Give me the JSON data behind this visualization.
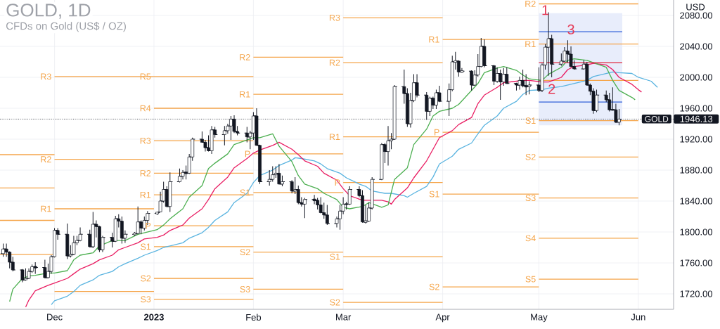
{
  "chart_data": {
    "type": "candlestick",
    "title": "GOLD, 1D",
    "subtitle": "CFDs on Gold (US$ / OZ)",
    "ylabel": "USD",
    "color": "#131722",
    "x": [
      "2022-11-15",
      "2022-11-16",
      "2022-11-17",
      "2022-11-18",
      "2022-11-21",
      "2022-11-22",
      "2022-11-23",
      "2022-11-24",
      "2022-11-25",
      "2022-11-28",
      "2022-11-29",
      "2022-11-30",
      "2022-12-01",
      "2022-12-02",
      "2022-12-05",
      "2022-12-06",
      "2022-12-07",
      "2022-12-08",
      "2022-12-09",
      "2022-12-12",
      "2022-12-13",
      "2022-12-14",
      "2022-12-15",
      "2022-12-16",
      "2022-12-19",
      "2022-12-20",
      "2022-12-21",
      "2022-12-22",
      "2022-12-23",
      "2022-12-26",
      "2022-12-27",
      "2022-12-28",
      "2022-12-29",
      "2022-12-30",
      "2023-01-02",
      "2023-01-03",
      "2023-01-04",
      "2023-01-05",
      "2023-01-06",
      "2023-01-09",
      "2023-01-10",
      "2023-01-11",
      "2023-01-12",
      "2023-01-13",
      "2023-01-16",
      "2023-01-17",
      "2023-01-18",
      "2023-01-19",
      "2023-01-20",
      "2023-01-23",
      "2023-01-24",
      "2023-01-25",
      "2023-01-26",
      "2023-01-27",
      "2023-01-30",
      "2023-01-31",
      "2023-02-01",
      "2023-02-02",
      "2023-02-03",
      "2023-02-06",
      "2023-02-07",
      "2023-02-08",
      "2023-02-09",
      "2023-02-10",
      "2023-02-13",
      "2023-02-14",
      "2023-02-15",
      "2023-02-16",
      "2023-02-17",
      "2023-02-20",
      "2023-02-21",
      "2023-02-22",
      "2023-02-23",
      "2023-02-24",
      "2023-02-27",
      "2023-02-28",
      "2023-03-01",
      "2023-03-02",
      "2023-03-03",
      "2023-03-06",
      "2023-03-07",
      "2023-03-08",
      "2023-03-09",
      "2023-03-10",
      "2023-03-13",
      "2023-03-14",
      "2023-03-15",
      "2023-03-16",
      "2023-03-17",
      "2023-03-20",
      "2023-03-21",
      "2023-03-22",
      "2023-03-23",
      "2023-03-24",
      "2023-03-27",
      "2023-03-28",
      "2023-03-29",
      "2023-03-30",
      "2023-03-31",
      "2023-04-03",
      "2023-04-04",
      "2023-04-05",
      "2023-04-06",
      "2023-04-07",
      "2023-04-10",
      "2023-04-11",
      "2023-04-12",
      "2023-04-13",
      "2023-04-14",
      "2023-04-17",
      "2023-04-18",
      "2023-04-19",
      "2023-04-20",
      "2023-04-21",
      "2023-04-24",
      "2023-04-25",
      "2023-04-26",
      "2023-04-27",
      "2023-04-28",
      "2023-05-01",
      "2023-05-02",
      "2023-05-03",
      "2023-05-04",
      "2023-05-05",
      "2023-05-08",
      "2023-05-09",
      "2023-05-10",
      "2023-05-11",
      "2023-05-12",
      "2023-05-15",
      "2023-05-16",
      "2023-05-17",
      "2023-05-18",
      "2023-05-19",
      "2023-05-22",
      "2023-05-23",
      "2023-05-24",
      "2023-05-25",
      "2023-05-26"
    ],
    "ohlc": [
      [
        1772,
        1785,
        1768,
        1778
      ],
      [
        1778,
        1785,
        1768,
        1774
      ],
      [
        1774,
        1775,
        1753,
        1761
      ],
      [
        1761,
        1768,
        1749,
        1751
      ],
      [
        1751,
        1752,
        1735,
        1738
      ],
      [
        1738,
        1753,
        1737,
        1740
      ],
      [
        1740,
        1753,
        1739,
        1749
      ],
      [
        1749,
        1758,
        1747,
        1755
      ],
      [
        1755,
        1761,
        1746,
        1754
      ],
      [
        1754,
        1764,
        1740,
        1741
      ],
      [
        1741,
        1759,
        1740,
        1749
      ],
      [
        1749,
        1770,
        1746,
        1768
      ],
      [
        1768,
        1805,
        1767,
        1802
      ],
      [
        1802,
        1805,
        1790,
        1797
      ],
      [
        1797,
        1811,
        1765,
        1769
      ],
      [
        1769,
        1783,
        1767,
        1771
      ],
      [
        1771,
        1795,
        1770,
        1786
      ],
      [
        1786,
        1795,
        1783,
        1789
      ],
      [
        1789,
        1806,
        1788,
        1797
      ],
      [
        1797,
        1803,
        1780,
        1781
      ],
      [
        1781,
        1826,
        1779,
        1810
      ],
      [
        1810,
        1815,
        1793,
        1807
      ],
      [
        1807,
        1808,
        1774,
        1777
      ],
      [
        1777,
        1795,
        1774,
        1793
      ],
      [
        1793,
        1799,
        1780,
        1788
      ],
      [
        1788,
        1821,
        1787,
        1817
      ],
      [
        1817,
        1823,
        1806,
        1814
      ],
      [
        1814,
        1820,
        1785,
        1792
      ],
      [
        1792,
        1802,
        1786,
        1797
      ],
      [
        1797,
        1800,
        1795,
        1798
      ],
      [
        1798,
        1833,
        1797,
        1813
      ],
      [
        1813,
        1815,
        1797,
        1805
      ],
      [
        1805,
        1820,
        1802,
        1815
      ],
      [
        1815,
        1827,
        1809,
        1824
      ],
      [
        1824,
        1826,
        1822,
        1825
      ],
      [
        1826,
        1852,
        1826,
        1840
      ],
      [
        1840,
        1865,
        1838,
        1855
      ],
      [
        1855,
        1859,
        1832,
        1833
      ],
      [
        1833,
        1877,
        1826,
        1865
      ],
      [
        1865,
        1882,
        1864,
        1872
      ],
      [
        1872,
        1880,
        1868,
        1877
      ],
      [
        1877,
        1886,
        1868,
        1876
      ],
      [
        1876,
        1901,
        1875,
        1897
      ],
      [
        1897,
        1922,
        1892,
        1920
      ],
      [
        1920,
        1930,
        1916,
        1916
      ],
      [
        1916,
        1919,
        1904,
        1909
      ],
      [
        1909,
        1925,
        1904,
        1905
      ],
      [
        1905,
        1937,
        1901,
        1932
      ],
      [
        1932,
        1936,
        1922,
        1926
      ],
      [
        1926,
        1937,
        1912,
        1931
      ],
      [
        1931,
        1940,
        1927,
        1937
      ],
      [
        1937,
        1950,
        1919,
        1946
      ],
      [
        1946,
        1951,
        1928,
        1930
      ],
      [
        1930,
        1937,
        1925,
        1928
      ],
      [
        1928,
        1936,
        1916,
        1923
      ],
      [
        1923,
        1931,
        1907,
        1928
      ],
      [
        1928,
        1955,
        1919,
        1950
      ],
      [
        1950,
        1960,
        1912,
        1912
      ],
      [
        1912,
        1913,
        1862,
        1865
      ],
      [
        1865,
        1880,
        1860,
        1868
      ],
      [
        1868,
        1885,
        1865,
        1874
      ],
      [
        1874,
        1885,
        1870,
        1876
      ],
      [
        1876,
        1888,
        1862,
        1862
      ],
      [
        1862,
        1873,
        1859,
        1865
      ],
      [
        1865,
        1867,
        1850,
        1853
      ],
      [
        1853,
        1871,
        1849,
        1855
      ],
      [
        1855,
        1860,
        1836,
        1838
      ],
      [
        1838,
        1845,
        1833,
        1836
      ],
      [
        1836,
        1844,
        1818,
        1842
      ],
      [
        1842,
        1848,
        1836,
        1841
      ],
      [
        1841,
        1844,
        1829,
        1835
      ],
      [
        1835,
        1845,
        1824,
        1825
      ],
      [
        1825,
        1838,
        1817,
        1822
      ],
      [
        1822,
        1835,
        1809,
        1811
      ],
      [
        1811,
        1820,
        1806,
        1817
      ],
      [
        1817,
        1835,
        1803,
        1827
      ],
      [
        1827,
        1845,
        1823,
        1836
      ],
      [
        1836,
        1839,
        1829,
        1836
      ],
      [
        1836,
        1859,
        1835,
        1855
      ],
      [
        1855,
        1859,
        1845,
        1847
      ],
      [
        1847,
        1854,
        1812,
        1813
      ],
      [
        1813,
        1835,
        1811,
        1814
      ],
      [
        1814,
        1838,
        1813,
        1831
      ],
      [
        1831,
        1871,
        1829,
        1868
      ],
      [
        1868,
        1915,
        1867,
        1913
      ],
      [
        1913,
        1915,
        1889,
        1904
      ],
      [
        1904,
        1937,
        1886,
        1918
      ],
      [
        1918,
        1928,
        1907,
        1920
      ],
      [
        1920,
        1990,
        1919,
        1988
      ],
      [
        1988,
        2010,
        1966,
        1979
      ],
      [
        1979,
        1986,
        1936,
        1940
      ],
      [
        1940,
        1980,
        1935,
        1970
      ],
      [
        1970,
        2004,
        1968,
        1993
      ],
      [
        1993,
        2004,
        1974,
        1977
      ],
      [
        1977,
        1981,
        1945,
        1956
      ],
      [
        1956,
        1975,
        1950,
        1973
      ],
      [
        1973,
        1975,
        1959,
        1964
      ],
      [
        1964,
        1984,
        1959,
        1980
      ],
      [
        1980,
        1989,
        1968,
        1969
      ],
      [
        1969,
        1992,
        1950,
        1984
      ],
      [
        1984,
        2028,
        1982,
        2020
      ],
      [
        2020,
        2033,
        2010,
        2021
      ],
      [
        2021,
        2022,
        2001,
        2007
      ],
      [
        2007,
        2012,
        2006,
        2008
      ],
      [
        2008,
        2009,
        1983,
        1990
      ],
      [
        1990,
        2009,
        1989,
        2003
      ],
      [
        2003,
        2030,
        2001,
        2014
      ],
      [
        2014,
        2051,
        2013,
        2040
      ],
      [
        2040,
        2049,
        2013,
        2015
      ],
      [
        2015,
        2016,
        1990,
        1995
      ],
      [
        1995,
        2013,
        1993,
        2005
      ],
      [
        2005,
        2010,
        1971,
        1994
      ],
      [
        1994,
        2012,
        1989,
        2004
      ],
      [
        2004,
        2013,
        1992,
        1992
      ],
      [
        1992,
        1993,
        1983,
        1990
      ],
      [
        1990,
        2001,
        1984,
        1996
      ],
      [
        1996,
        2010,
        1987,
        1989
      ],
      [
        1989,
        2004,
        1977,
        1988
      ],
      [
        1988,
        1995,
        1978,
        1990
      ],
      [
        1990,
        2013,
        1981,
        1983
      ],
      [
        1983,
        2018,
        1981,
        2016
      ],
      [
        2016,
        2043,
        2010,
        2039
      ],
      [
        2039,
        2084,
        2002,
        2050
      ],
      [
        2050,
        2055,
        2000,
        2017
      ],
      [
        2017,
        2031,
        2015,
        2021
      ],
      [
        2021,
        2039,
        2020,
        2034
      ],
      [
        2034,
        2048,
        2019,
        2030
      ],
      [
        2030,
        2040,
        2013,
        2014
      ],
      [
        2014,
        2022,
        2010,
        2011
      ],
      [
        2011,
        2022,
        2010,
        2017
      ],
      [
        2017,
        2020,
        1989,
        1990
      ],
      [
        1990,
        1992,
        1977,
        1982
      ],
      [
        1982,
        1986,
        1953,
        1957
      ],
      [
        1957,
        1984,
        1955,
        1977
      ],
      [
        1977,
        1983,
        1968,
        1971
      ],
      [
        1971,
        1980,
        1956,
        1958
      ],
      [
        1958,
        1987,
        1957,
        1958
      ],
      [
        1958,
        1966,
        1941,
        1942
      ],
      [
        1942,
        1959,
        1938,
        1946
      ]
    ],
    "xlim": [
      "2022-11-14",
      "2023-06-12"
    ],
    "xticks": [
      {
        "value": "2022-12-01",
        "label": "Dec"
      },
      {
        "value": "2023-01-01",
        "label": "2023"
      },
      {
        "value": "2023-02-01",
        "label": "Feb"
      },
      {
        "value": "2023-03-01",
        "label": "Mar"
      },
      {
        "value": "2023-04-01",
        "label": "Apr"
      },
      {
        "value": "2023-05-01",
        "label": "May"
      },
      {
        "value": "2023-06-01",
        "label": "Jun"
      }
    ],
    "ylim": [
      1700,
      2100
    ],
    "yticks": [
      {
        "value": 1720,
        "label": "1720.00"
      },
      {
        "value": 1760,
        "label": "1760.00"
      },
      {
        "value": 1800,
        "label": "1800.00"
      },
      {
        "value": 1840,
        "label": "1840.00"
      },
      {
        "value": 1880,
        "label": "1880.00"
      },
      {
        "value": 1920,
        "label": "1920.00"
      },
      {
        "value": 1960,
        "label": "1960.00"
      },
      {
        "value": 2000,
        "label": "2000.00"
      },
      {
        "value": 2040,
        "label": "2040.00"
      },
      {
        "value": 2080,
        "label": "2080.00"
      }
    ],
    "grid": true,
    "series": [
      {
        "type": "line",
        "color": "#f5a54a",
        "x": [
          "2022-11-14",
          "2022-12-01"
        ],
        "values": [
          1900,
          1900
        ]
      },
      {
        "type": "line",
        "color": "#f5a54a",
        "x": [
          "2022-11-14",
          "2022-12-01"
        ],
        "values": [
          1857,
          1857
        ]
      },
      {
        "type": "line",
        "color": "#f5a54a",
        "x": [
          "2022-11-14",
          "2022-12-01"
        ],
        "values": [
          1815,
          1815
        ]
      },
      {
        "type": "line",
        "color": "#f5a54a",
        "x": [
          "2022-11-14",
          "2022-12-01"
        ],
        "values": [
          1771,
          1771
        ]
      },
      {
        "type": "line",
        "name": "R3",
        "color": "#f5a54a",
        "x": [
          "2022-12-01",
          "2023-01-01"
        ],
        "values": [
          2001,
          2001
        ]
      },
      {
        "type": "line",
        "name": "R2",
        "color": "#f5a54a",
        "x": [
          "2022-12-01",
          "2023-01-01"
        ],
        "values": [
          1894,
          1894
        ]
      },
      {
        "type": "line",
        "name": "R1",
        "color": "#f5a54a",
        "x": [
          "2022-12-01",
          "2023-01-01"
        ],
        "values": [
          1830,
          1830
        ]
      },
      {
        "type": "line",
        "color": "#f5a54a",
        "x": [
          "2022-12-01",
          "2023-01-01"
        ],
        "values": [
          1723,
          1723
        ]
      },
      {
        "type": "line",
        "name": "R5",
        "color": "#f5a54a",
        "x": [
          "2023-01-01",
          "2023-02-01"
        ],
        "values": [
          2001,
          2001
        ]
      },
      {
        "type": "line",
        "name": "R4",
        "color": "#f5a54a",
        "x": [
          "2023-01-01",
          "2023-02-01"
        ],
        "values": [
          1960,
          1960
        ]
      },
      {
        "type": "line",
        "name": "R3",
        "color": "#f5a54a",
        "x": [
          "2023-01-01",
          "2023-02-01"
        ],
        "values": [
          1918,
          1918
        ]
      },
      {
        "type": "line",
        "name": "R2",
        "color": "#f5a54a",
        "x": [
          "2023-01-01",
          "2023-02-01"
        ],
        "values": [
          1876,
          1876
        ]
      },
      {
        "type": "line",
        "name": "R1",
        "color": "#f5a54a",
        "x": [
          "2023-01-01",
          "2023-02-01"
        ],
        "values": [
          1848,
          1848
        ]
      },
      {
        "type": "line",
        "name": "P",
        "color": "#f5a54a",
        "x": [
          "2023-01-01",
          "2023-02-01"
        ],
        "values": [
          1808,
          1808
        ]
      },
      {
        "type": "line",
        "name": "S1",
        "color": "#f5a54a",
        "x": [
          "2023-01-01",
          "2023-02-01"
        ],
        "values": [
          1781,
          1781
        ]
      },
      {
        "type": "line",
        "name": "S2",
        "color": "#f5a54a",
        "x": [
          "2023-01-01",
          "2023-02-01"
        ],
        "values": [
          1740,
          1740
        ]
      },
      {
        "type": "line",
        "name": "S3",
        "color": "#f5a54a",
        "x": [
          "2023-01-01",
          "2023-02-01"
        ],
        "values": [
          1713,
          1713
        ]
      },
      {
        "type": "line",
        "name": "R2",
        "color": "#f5a54a",
        "x": [
          "2023-02-01",
          "2023-03-01"
        ],
        "values": [
          2026,
          2026
        ]
      },
      {
        "type": "line",
        "name": "R1",
        "color": "#f5a54a",
        "x": [
          "2023-02-01",
          "2023-03-01"
        ],
        "values": [
          1978,
          1978
        ]
      },
      {
        "type": "line",
        "name": "P",
        "color": "#f5a54a",
        "x": [
          "2023-02-01",
          "2023-03-01"
        ],
        "values": [
          1901,
          1901
        ]
      },
      {
        "type": "line",
        "name": "S1",
        "color": "#f5a54a",
        "x": [
          "2023-02-01",
          "2023-03-01"
        ],
        "values": [
          1851,
          1851
        ]
      },
      {
        "type": "line",
        "name": "S2",
        "color": "#f5a54a",
        "x": [
          "2023-02-01",
          "2023-03-01"
        ],
        "values": [
          1774,
          1774
        ]
      },
      {
        "type": "line",
        "name": "S3",
        "color": "#f5a54a",
        "x": [
          "2023-02-01",
          "2023-03-01"
        ],
        "values": [
          1726,
          1726
        ]
      },
      {
        "type": "line",
        "name": "R3",
        "color": "#f5a54a",
        "x": [
          "2023-03-01",
          "2023-04-01"
        ],
        "values": [
          2077,
          2077
        ]
      },
      {
        "type": "line",
        "name": "R2",
        "color": "#f5a54a",
        "x": [
          "2023-03-01",
          "2023-04-01"
        ],
        "values": [
          2019,
          2019
        ]
      },
      {
        "type": "line",
        "name": "R1",
        "color": "#f5a54a",
        "x": [
          "2023-03-01",
          "2023-04-01"
        ],
        "values": [
          1923,
          1923
        ]
      },
      {
        "type": "line",
        "name": "P",
        "color": "#f5a54a",
        "x": [
          "2023-03-01",
          "2023-04-01"
        ],
        "values": [
          1864,
          1864
        ]
      },
      {
        "type": "line",
        "name": "S1",
        "color": "#f5a54a",
        "x": [
          "2023-03-01",
          "2023-04-01"
        ],
        "values": [
          1768,
          1768
        ]
      },
      {
        "type": "line",
        "name": "S2",
        "color": "#f5a54a",
        "x": [
          "2023-03-01",
          "2023-04-01"
        ],
        "values": [
          1709,
          1709
        ]
      },
      {
        "type": "line",
        "name": "R1",
        "color": "#f5a54a",
        "x": [
          "2023-04-01",
          "2023-05-01"
        ],
        "values": [
          2049,
          2049
        ]
      },
      {
        "type": "line",
        "name": "P",
        "color": "#f5a54a",
        "x": [
          "2023-04-01",
          "2023-05-01"
        ],
        "values": [
          1929,
          1929
        ]
      },
      {
        "type": "line",
        "name": "S1",
        "color": "#f5a54a",
        "x": [
          "2023-04-01",
          "2023-05-01"
        ],
        "values": [
          1849,
          1849
        ]
      },
      {
        "type": "line",
        "name": "S2",
        "color": "#f5a54a",
        "x": [
          "2023-04-01",
          "2023-05-01"
        ],
        "values": [
          1729,
          1729
        ]
      },
      {
        "type": "line",
        "name": "R2",
        "color": "#f5a54a",
        "x": [
          "2023-05-01",
          "2023-06-01"
        ],
        "values": [
          2095,
          2095
        ]
      },
      {
        "type": "line",
        "name": "R1",
        "color": "#f5a54a",
        "x": [
          "2023-05-01",
          "2023-06-01"
        ],
        "values": [
          2043,
          2043
        ]
      },
      {
        "type": "line",
        "color": "#f5a54a",
        "x": [
          "2023-05-01",
          "2023-06-01"
        ],
        "values": [
          1996,
          1996
        ]
      },
      {
        "type": "line",
        "name": "S1",
        "color": "#f5a54a",
        "x": [
          "2023-05-01",
          "2023-06-01"
        ],
        "values": [
          1944,
          1944
        ]
      },
      {
        "type": "line",
        "name": "S2",
        "color": "#f5a54a",
        "x": [
          "2023-05-01",
          "2023-06-01"
        ],
        "values": [
          1897,
          1897
        ]
      },
      {
        "type": "line",
        "name": "S3",
        "color": "#f5a54a",
        "x": [
          "2023-05-01",
          "2023-06-01"
        ],
        "values": [
          1844,
          1844
        ]
      },
      {
        "type": "line",
        "name": "S4",
        "color": "#f5a54a",
        "x": [
          "2023-05-01",
          "2023-06-01"
        ],
        "values": [
          1792,
          1792
        ]
      },
      {
        "type": "line",
        "name": "S5",
        "color": "#f5a54a",
        "x": [
          "2023-05-01",
          "2023-06-01"
        ],
        "values": [
          1739,
          1739
        ]
      },
      {
        "type": "line",
        "color": "#5ab4e0",
        "x": [
          "2022-11-30",
          "2022-12-01",
          "2022-12-05",
          "2022-12-07",
          "2022-12-09",
          "2022-12-13",
          "2022-12-15",
          "2022-12-19",
          "2022-12-21",
          "2022-12-23",
          "2022-12-27",
          "2022-12-29",
          "2023-01-02",
          "2023-01-04",
          "2023-01-06",
          "2023-01-10",
          "2023-01-12",
          "2023-01-16",
          "2023-01-18",
          "2023-01-20",
          "2023-01-24",
          "2023-01-26",
          "2023-01-30",
          "2023-02-01",
          "2023-02-03",
          "2023-02-07",
          "2023-02-09",
          "2023-02-13",
          "2023-02-14",
          "2023-02-16",
          "2023-02-20",
          "2023-02-22",
          "2023-02-24",
          "2023-02-28",
          "2023-03-02",
          "2023-03-06",
          "2023-03-08",
          "2023-03-10",
          "2023-03-14",
          "2023-03-16",
          "2023-03-20",
          "2023-03-21",
          "2023-03-23",
          "2023-03-27",
          "2023-03-29",
          "2023-03-31",
          "2023-04-04",
          "2023-04-06",
          "2023-04-10",
          "2023-04-12",
          "2023-04-14",
          "2023-04-18",
          "2023-04-20",
          "2023-04-24",
          "2023-04-26",
          "2023-04-28",
          "2023-05-02",
          "2023-05-04",
          "2023-05-08",
          "2023-05-10",
          "2023-05-12",
          "2023-05-16",
          "2023-05-18",
          "2023-05-22",
          "2023-05-24",
          "2023-05-26",
          "2023-05-30",
          "2023-06-01",
          "2023-06-05",
          "2023-06-07"
        ],
        "values": [
          1706,
          1711,
          1717,
          1723,
          1731,
          1738,
          1744,
          1749,
          1755,
          1759,
          1766,
          1770,
          1776,
          1780,
          1782,
          1786,
          1792,
          1799,
          1806,
          1815,
          1826,
          1838,
          1850,
          1864,
          1873,
          1880,
          1886,
          1893,
          1896,
          1895,
          1892,
          1888,
          1882,
          1876,
          1870,
          1862,
          1859,
          1853,
          1850,
          1850,
          1847,
          1845,
          1850,
          1859,
          1871,
          1888,
          1898,
          1907,
          1915,
          1927,
          1938,
          1950,
          1960,
          1969,
          1978,
          1983,
          1984,
          1986,
          1988,
          1990,
          1992,
          1996,
          2001,
          2005,
          2007,
          2006,
          2005,
          2000,
          1995,
          1987
        ]
      },
      {
        "type": "line",
        "color": "#e91e63",
        "x": [
          "2022-11-22",
          "2022-11-23",
          "2022-11-25",
          "2022-11-29",
          "2022-12-01",
          "2022-12-05",
          "2022-12-07",
          "2022-12-09",
          "2022-12-13",
          "2022-12-15",
          "2022-12-19",
          "2022-12-21",
          "2022-12-23",
          "2022-12-27",
          "2022-12-29",
          "2023-01-02",
          "2023-01-04",
          "2023-01-06",
          "2023-01-10",
          "2023-01-12",
          "2023-01-16",
          "2023-01-18",
          "2023-01-20",
          "2023-01-24",
          "2023-01-26",
          "2023-01-30",
          "2023-02-01",
          "2023-02-03",
          "2023-02-07",
          "2023-02-09",
          "2023-02-13",
          "2023-02-15",
          "2023-02-17",
          "2023-02-21",
          "2023-02-23",
          "2023-02-27",
          "2023-03-01",
          "2023-03-03",
          "2023-03-07",
          "2023-03-09",
          "2023-03-13",
          "2023-03-15",
          "2023-03-16",
          "2023-03-17",
          "2023-03-21",
          "2023-03-23",
          "2023-03-27",
          "2023-03-29",
          "2023-03-31",
          "2023-04-04",
          "2023-04-06",
          "2023-04-10",
          "2023-04-12",
          "2023-04-14",
          "2023-04-18",
          "2023-04-20",
          "2023-04-24",
          "2023-04-26",
          "2023-04-28",
          "2023-05-02",
          "2023-05-04",
          "2023-05-08",
          "2023-05-10",
          "2023-05-12",
          "2023-05-16",
          "2023-05-18",
          "2023-05-22",
          "2023-05-24",
          "2023-05-26",
          "2023-05-30",
          "2023-06-01",
          "2023-06-02"
        ],
        "values": [
          1703,
          1712,
          1724,
          1731,
          1734,
          1740,
          1746,
          1752,
          1759,
          1764,
          1770,
          1777,
          1780,
          1786,
          1791,
          1793,
          1796,
          1802,
          1809,
          1818,
          1830,
          1842,
          1856,
          1871,
          1883,
          1895,
          1902,
          1906,
          1912,
          1916,
          1907,
          1900,
          1892,
          1885,
          1876,
          1867,
          1856,
          1847,
          1841,
          1841,
          1841,
          1839,
          1836,
          1842,
          1857,
          1870,
          1892,
          1907,
          1922,
          1931,
          1939,
          1948,
          1966,
          1977,
          1987,
          1993,
          1995,
          1996,
          1996,
          1994,
          1994,
          2000,
          2010,
          2014,
          2016,
          2018,
          2016,
          2010,
          2000,
          1991,
          1984,
          1981
        ]
      },
      {
        "type": "line",
        "color": "#4caf50",
        "x": [
          "2022-11-17",
          "2022-11-18",
          "2022-11-21",
          "2022-11-23",
          "2022-11-25",
          "2022-11-29",
          "2022-12-01",
          "2022-12-05",
          "2022-12-07",
          "2022-12-09",
          "2022-12-13",
          "2022-12-15",
          "2022-12-19",
          "2022-12-21",
          "2022-12-23",
          "2022-12-27",
          "2022-12-29",
          "2023-01-02",
          "2023-01-04",
          "2023-01-06",
          "2023-01-10",
          "2023-01-12",
          "2023-01-16",
          "2023-01-18",
          "2023-01-20",
          "2023-01-24",
          "2023-01-26",
          "2023-01-30",
          "2023-02-01",
          "2023-02-03",
          "2023-02-07",
          "2023-02-09",
          "2023-02-13",
          "2023-02-15",
          "2023-02-17",
          "2023-02-21",
          "2023-02-23",
          "2023-02-27",
          "2023-03-01",
          "2023-03-03",
          "2023-03-07",
          "2023-03-09",
          "2023-03-13",
          "2023-03-15",
          "2023-03-17",
          "2023-03-21",
          "2023-03-23",
          "2023-03-27",
          "2023-03-29",
          "2023-03-31",
          "2023-04-04",
          "2023-04-06",
          "2023-04-10",
          "2023-04-12",
          "2023-04-14",
          "2023-04-18",
          "2023-04-20",
          "2023-04-24",
          "2023-04-26",
          "2023-04-28",
          "2023-05-02",
          "2023-05-04",
          "2023-05-08",
          "2023-05-10",
          "2023-05-12",
          "2023-05-16",
          "2023-05-18",
          "2023-05-22",
          "2023-05-24",
          "2023-05-26",
          "2023-05-30",
          "2023-05-31"
        ],
        "values": [
          1710,
          1726,
          1740,
          1743,
          1744,
          1747,
          1747,
          1750,
          1764,
          1770,
          1773,
          1782,
          1789,
          1789,
          1789,
          1797,
          1799,
          1803,
          1809,
          1817,
          1830,
          1845,
          1860,
          1882,
          1889,
          1901,
          1913,
          1919,
          1922,
          1922,
          1927,
          1911,
          1891,
          1873,
          1862,
          1856,
          1850,
          1842,
          1832,
          1830,
          1833,
          1838,
          1832,
          1835,
          1868,
          1883,
          1913,
          1933,
          1950,
          1956,
          1960,
          1965,
          1983,
          1992,
          2006,
          2012,
          2014,
          2009,
          2003,
          1998,
          1996,
          2004,
          2013,
          2022,
          2024,
          2022,
          2019,
          2013,
          1996,
          1983,
          1974,
          1971
        ]
      },
      {
        "type": "line",
        "color": "#2f5fd8",
        "x": [
          "2023-05-01",
          "2023-05-27"
        ],
        "values": [
          2059,
          2059
        ],
        "lower": [
          1938,
          1938
        ],
        "upper": [
          2083,
          2083
        ]
      },
      {
        "type": "line",
        "color": "#e0283f",
        "x": [
          "2023-05-01",
          "2023-05-27"
        ],
        "values": [
          2019,
          2019
        ]
      },
      {
        "type": "line",
        "color": "#2f5fd8",
        "x": [
          "2023-05-01",
          "2023-05-27"
        ],
        "values": [
          1968,
          1968
        ]
      }
    ],
    "ref_lines": [
      {
        "axis": "y",
        "value": 1946.13,
        "label": "GOLD",
        "color": "#131722",
        "line_style": "dotted"
      }
    ],
    "annotations": [
      {
        "text": "1",
        "x": "2023-05-03",
        "y": 2087
      },
      {
        "text": "2",
        "x": "2023-05-05",
        "y": 1985
      },
      {
        "text": "3",
        "x": "2023-05-11",
        "y": 2062
      },
      "1946.13"
    ]
  }
}
